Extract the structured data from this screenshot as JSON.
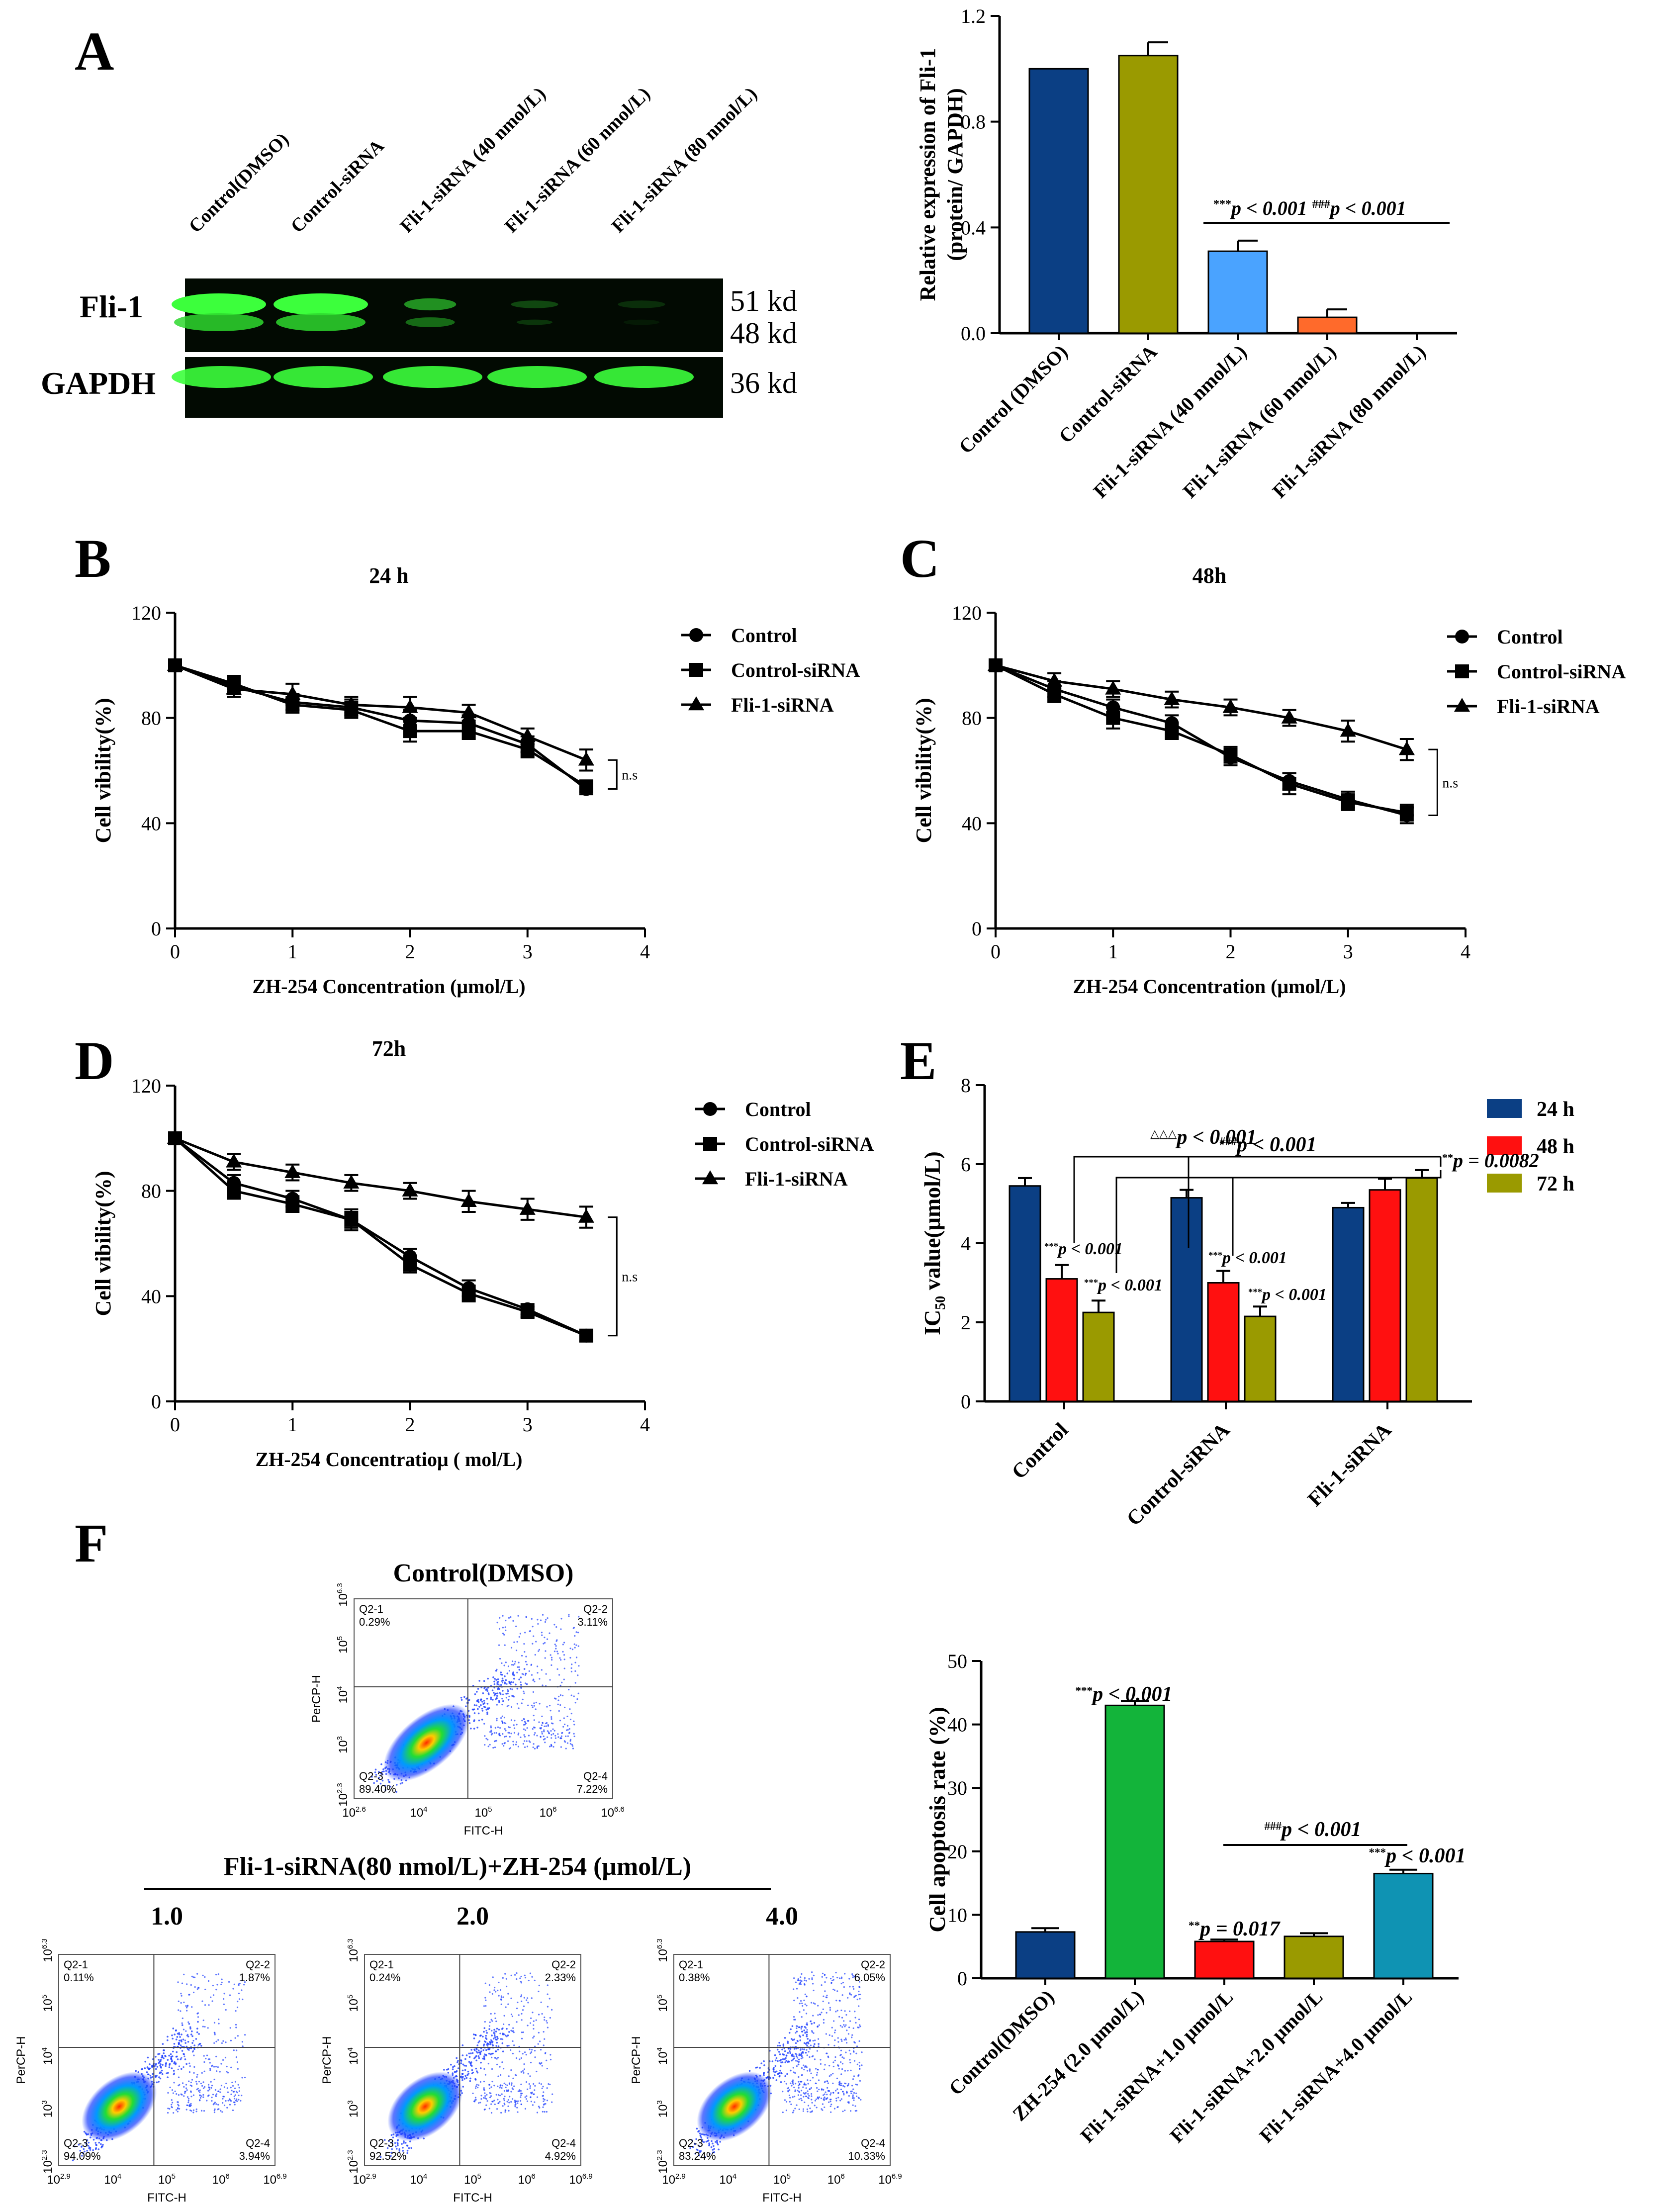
{
  "panels": {
    "A": "A",
    "B": "B",
    "C": "C",
    "D": "D",
    "E": "E",
    "F": "F"
  },
  "western_blot": {
    "lanes": [
      "Control(DMSO)",
      "Control-siRNA",
      "Fli-1-siRNA (40 nmol/L)",
      "Fli-1-siRNA (60 nmol/L)",
      "Fli-1-siRNA (80 nmol/L)"
    ],
    "row_labels": [
      "Fli-1",
      "GAPDH"
    ],
    "mw_labels": [
      "51 kd",
      "48 kd",
      "36 kd"
    ],
    "fli1_band_intensity": [
      1.0,
      1.0,
      0.55,
      0.25,
      0.05
    ],
    "gapdh_band_intensity": [
      1.0,
      1.0,
      1.0,
      1.0,
      1.0
    ]
  },
  "chart_data": [
    {
      "id": "A-bar",
      "type": "bar",
      "ylabel_line1": "Relative expression of Fli-1",
      "ylabel_line2": "(protein/ GAPDH)",
      "ylim": [
        0,
        1.2
      ],
      "yticks": [
        "0.0",
        "0.4",
        "0.8",
        "1.2"
      ],
      "categories": [
        "Control (DMSO)",
        "Control-siRNA",
        "Fli-1-siRNA (40 nmol/L)",
        "Fli-1-siRNA (60 nmol/L)",
        "Fli-1-siRNA (80 nmol/L)"
      ],
      "values": [
        1.0,
        1.05,
        0.31,
        0.06,
        0.0
      ],
      "errors": [
        0,
        0.05,
        0.04,
        0.03,
        0
      ],
      "colors": [
        "#0b3f84",
        "#9a9a00",
        "#4aa3ff",
        "#ff6a2b",
        "#cc2020"
      ],
      "annotation": "***p < 0.001 ###p < 0.001"
    },
    {
      "id": "B",
      "type": "line",
      "title": "24 h",
      "xlabel": "ZH-254 Concentration (μmol/L)",
      "ylabel": "Cell vibility(%)",
      "xlim": [
        0,
        4
      ],
      "ylim": [
        0,
        120
      ],
      "xticks": [
        "0",
        "1",
        "2",
        "3",
        "4"
      ],
      "yticks": [
        "0",
        "40",
        "80",
        "120"
      ],
      "x": [
        0,
        0.5,
        1,
        1.5,
        2,
        2.5,
        3,
        3.5
      ],
      "series": [
        {
          "name": "Control",
          "marker": "circle",
          "values": [
            100,
            92,
            86,
            84,
            79,
            78,
            70,
            53
          ],
          "err": [
            2,
            3,
            3,
            3,
            4,
            3,
            3,
            2
          ]
        },
        {
          "name": "Control-siRNA",
          "marker": "square",
          "values": [
            100,
            93,
            85,
            83,
            75,
            75,
            68,
            54
          ],
          "err": [
            2,
            3,
            3,
            3,
            4,
            3,
            3,
            2
          ]
        },
        {
          "name": "Fli-1-siRNA",
          "marker": "triangle",
          "values": [
            100,
            91,
            89,
            85,
            84,
            82,
            73,
            64
          ],
          "err": [
            2,
            3,
            4,
            3,
            4,
            3,
            3,
            4
          ]
        }
      ],
      "sig": "n.s"
    },
    {
      "id": "C",
      "type": "line",
      "title": "48h",
      "xlabel": "ZH-254 Concentration (μmol/L)",
      "ylabel": "Cell vibility(%)",
      "xlim": [
        0,
        4
      ],
      "ylim": [
        0,
        120
      ],
      "xticks": [
        "0",
        "1",
        "2",
        "3",
        "4"
      ],
      "yticks": [
        "0",
        "40",
        "80",
        "120"
      ],
      "x": [
        0,
        0.5,
        1,
        1.5,
        2,
        2.5,
        3,
        3.5
      ],
      "series": [
        {
          "name": "Control",
          "marker": "circle",
          "values": [
            100,
            91,
            84,
            78,
            65,
            56,
            49,
            43
          ],
          "err": [
            2,
            3,
            3,
            3,
            3,
            3,
            3,
            3
          ]
        },
        {
          "name": "Control-siRNA",
          "marker": "square",
          "values": [
            100,
            89,
            80,
            75,
            66,
            55,
            48,
            44
          ],
          "err": [
            2,
            3,
            4,
            3,
            3,
            4,
            3,
            3
          ]
        },
        {
          "name": "Fli-1-siRNA",
          "marker": "triangle",
          "values": [
            100,
            94,
            91,
            87,
            84,
            80,
            75,
            68
          ],
          "err": [
            2,
            3,
            3,
            3,
            3,
            3,
            4,
            4
          ]
        }
      ],
      "sig": "n.s"
    },
    {
      "id": "D",
      "type": "line",
      "title": "72h",
      "xlabel": "ZH-254 Concentratioμ (  mol/L)",
      "ylabel": "Cell vibility(%)",
      "xlim": [
        0,
        4
      ],
      "ylim": [
        0,
        120
      ],
      "xticks": [
        "0",
        "1",
        "2",
        "3",
        "4"
      ],
      "yticks": [
        "0",
        "40",
        "80",
        "120"
      ],
      "x": [
        0,
        0.5,
        1,
        1.5,
        2,
        2.5,
        3,
        3.5
      ],
      "series": [
        {
          "name": "Control",
          "marker": "circle",
          "values": [
            100,
            83,
            77,
            69,
            55,
            43,
            35,
            25
          ],
          "err": [
            2,
            3,
            3,
            3,
            3,
            3,
            2,
            2
          ]
        },
        {
          "name": "Control-siRNA",
          "marker": "square",
          "values": [
            100,
            80,
            75,
            69,
            52,
            41,
            34,
            25
          ],
          "err": [
            2,
            3,
            3,
            4,
            3,
            3,
            2,
            2
          ]
        },
        {
          "name": "Fli-1-siRNA",
          "marker": "triangle",
          "values": [
            100,
            91,
            87,
            83,
            80,
            76,
            73,
            70
          ],
          "err": [
            2,
            3,
            3,
            3,
            3,
            4,
            4,
            4
          ]
        }
      ],
      "sig": "n.s"
    },
    {
      "id": "E",
      "type": "bar",
      "ylabel_main": "IC",
      "ylabel_sub": "50",
      "ylabel_rest": " value(μmol/L)",
      "ylim": [
        0,
        8
      ],
      "yticks": [
        "0",
        "2",
        "4",
        "6",
        "8"
      ],
      "categories": [
        "Control",
        "Control-siRNA",
        "Fli-1-siRNA"
      ],
      "series": [
        {
          "name": "24 h",
          "color": "#0b3f84",
          "values": [
            5.45,
            5.15,
            4.9
          ],
          "err": [
            0.2,
            0.2,
            0.12
          ]
        },
        {
          "name": "48 h",
          "color": "#ff1010",
          "values": [
            3.1,
            3.0,
            5.35
          ],
          "err": [
            0.35,
            0.3,
            0.28
          ]
        },
        {
          "name": "72 h",
          "color": "#9a9a00",
          "values": [
            2.25,
            2.15,
            5.65
          ],
          "err": [
            0.3,
            0.25,
            0.2
          ]
        }
      ],
      "annotations": [
        "△△△p < 0.001",
        "###p < 0.001",
        "**p = 0.0082",
        "***p < 0.001",
        "***p < 0.001",
        "***p < 0.001",
        "***p < 0.001"
      ]
    },
    {
      "id": "F-bar",
      "type": "bar",
      "ylabel": "Cell apoptosis rate (%)",
      "ylim": [
        0,
        50
      ],
      "yticks": [
        "0",
        "10",
        "20",
        "30",
        "40",
        "50"
      ],
      "categories": [
        "Control(DMSO)",
        "ZH-254 (2.0 μmol/L)",
        "Fli-1-siRNA+1.0 μmol/L",
        "Fli-1-siRNA+2.0 μmol/L",
        "Fli-1-siRNA+4.0 μmol/L"
      ],
      "values": [
        7.3,
        43.0,
        5.8,
        6.6,
        16.5
      ],
      "errors": [
        0.6,
        0.7,
        0.3,
        0.5,
        0.6
      ],
      "colors": [
        "#0b3f84",
        "#13b43a",
        "#ff1010",
        "#9a9a00",
        "#0f93b3"
      ],
      "annotations": [
        "***p < 0.001",
        "**p = 0.017",
        "###p < 0.001",
        "***p < 0.001"
      ]
    },
    {
      "id": "F-flow",
      "type": "scatter",
      "group_label": "Fli-1-siRNA(80 nmol/L)+ZH-254 (μmol/L)",
      "plots": [
        {
          "title": "Control(DMSO)",
          "q1": "Q2-1",
          "q1v": "0.29%",
          "q2": "Q2-2",
          "q2v": "3.11%",
          "q3": "Q2-3",
          "q3v": "89.40%",
          "q4": "Q2-4",
          "q4v": "7.22%",
          "x_start": "2.6",
          "x_end": "6.6",
          "y_start": "2.3",
          "y_end": "6.3",
          "tail": 0.35
        },
        {
          "title": "1.0",
          "q1": "Q2-1",
          "q1v": "0.11%",
          "q2": "Q2-2",
          "q2v": "1.87%",
          "q3": "Q2-3",
          "q3v": "94.09%",
          "q4": "Q2-4",
          "q4v": "3.94%",
          "x_start": "2.9",
          "x_end": "6.9",
          "y_start": "2.3",
          "y_end": "6.3",
          "tail": 0.25
        },
        {
          "title": "2.0",
          "q1": "Q2-1",
          "q1v": "0.24%",
          "q2": "Q2-2",
          "q2v": "2.33%",
          "q3": "Q2-3",
          "q3v": "92.52%",
          "q4": "Q2-4",
          "q4v": "4.92%",
          "x_start": "2.9",
          "x_end": "6.9",
          "y_start": "2.3",
          "y_end": "6.3",
          "tail": 0.3
        },
        {
          "title": "4.0",
          "q1": "Q2-1",
          "q1v": "0.38%",
          "q2": "Q2-2",
          "q2v": "6.05%",
          "q3": "Q2-3",
          "q3v": "83.24%",
          "q4": "Q2-4",
          "q4v": "10.33%",
          "x_start": "2.9",
          "x_end": "6.9",
          "y_start": "2.3",
          "y_end": "6.3",
          "tail": 0.5
        }
      ],
      "x_axis": "FITC-H",
      "y_axis": "PerCP-H",
      "xticks": [
        "10",
        "10",
        "10",
        "10"
      ],
      "xexps": [
        "4",
        "5",
        "6"
      ],
      "yexps": [
        "3",
        "4",
        "5"
      ]
    }
  ]
}
